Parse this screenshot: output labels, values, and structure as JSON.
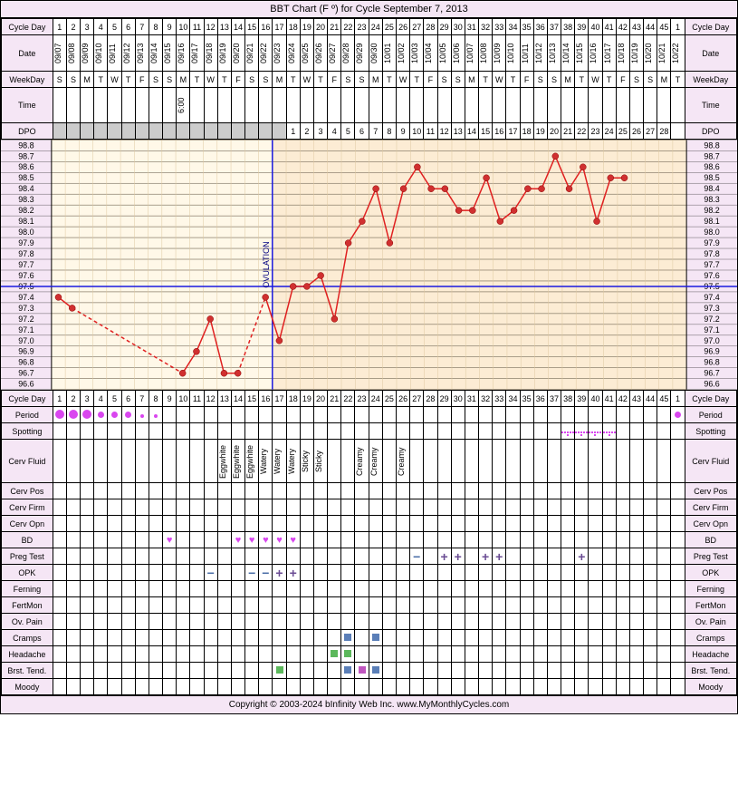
{
  "title": "BBT Chart (F º) for Cycle September 7, 2013",
  "footer": "Copyright © 2003-2024 bInfinity Web Inc.    www.MyMonthlyCycles.com",
  "labels": {
    "cycleDay": "Cycle Day",
    "date": "Date",
    "weekday": "WeekDay",
    "time": "Time",
    "dpo": "DPO",
    "period": "Period",
    "spotting": "Spotting",
    "cervFluid": "Cerv Fluid",
    "cervPos": "Cerv Pos",
    "cervFirm": "Cerv Firm",
    "cervOpn": "Cerv Opn",
    "bd": "BD",
    "pregTest": "Preg Test",
    "opk": "OPK",
    "ferning": "Ferning",
    "fertMon": "FertMon",
    "ovPain": "Ov. Pain",
    "cramps": "Cramps",
    "headache": "Headache",
    "brstTend": "Brst. Tend.",
    "moody": "Moody"
  },
  "days": 46,
  "cycleDays": [
    1,
    2,
    3,
    4,
    5,
    6,
    7,
    8,
    9,
    10,
    11,
    12,
    13,
    14,
    15,
    16,
    17,
    18,
    19,
    20,
    21,
    22,
    23,
    24,
    25,
    26,
    27,
    28,
    29,
    30,
    31,
    32,
    33,
    34,
    35,
    36,
    37,
    38,
    39,
    40,
    41,
    42,
    43,
    44,
    45,
    1
  ],
  "dates": [
    "09/07",
    "09/08",
    "09/09",
    "09/10",
    "09/11",
    "09/12",
    "09/13",
    "09/14",
    "09/15",
    "09/16",
    "09/17",
    "09/18",
    "09/19",
    "09/20",
    "09/21",
    "09/22",
    "09/23",
    "09/24",
    "09/25",
    "09/26",
    "09/27",
    "09/28",
    "09/29",
    "09/30",
    "10/01",
    "10/02",
    "10/03",
    "10/04",
    "10/05",
    "10/06",
    "10/07",
    "10/08",
    "10/09",
    "10/10",
    "10/11",
    "10/12",
    "10/13",
    "10/14",
    "10/15",
    "10/16",
    "10/17",
    "10/18",
    "10/19",
    "10/20",
    "10/21",
    "10/22"
  ],
  "weekdays": [
    "S",
    "S",
    "M",
    "T",
    "W",
    "T",
    "F",
    "S",
    "S",
    "M",
    "T",
    "W",
    "T",
    "F",
    "S",
    "S",
    "M",
    "T",
    "W",
    "T",
    "F",
    "S",
    "S",
    "M",
    "T",
    "W",
    "T",
    "F",
    "S",
    "S",
    "M",
    "T",
    "W",
    "T",
    "F",
    "S",
    "S",
    "M",
    "T",
    "W",
    "T",
    "F",
    "S",
    "S",
    "M",
    "T"
  ],
  "times": {
    "10": "6:00"
  },
  "dpo": [
    null,
    null,
    null,
    null,
    null,
    null,
    null,
    null,
    null,
    null,
    null,
    null,
    null,
    null,
    null,
    null,
    null,
    1,
    2,
    3,
    4,
    5,
    6,
    7,
    8,
    9,
    10,
    11,
    12,
    13,
    14,
    15,
    16,
    17,
    18,
    19,
    20,
    21,
    22,
    23,
    24,
    25,
    26,
    27,
    28,
    null
  ],
  "tempScale": [
    98.8,
    98.7,
    98.6,
    98.5,
    98.4,
    98.3,
    98.2,
    98.1,
    98.0,
    97.9,
    97.8,
    97.7,
    97.6,
    97.5,
    97.4,
    97.3,
    97.2,
    97.1,
    97.0,
    96.9,
    96.8,
    96.7,
    96.6
  ],
  "ovulationDay": 17,
  "coverline": 97.5,
  "temps": [
    {
      "d": 1,
      "t": 97.4,
      "dashed": false
    },
    {
      "d": 2,
      "t": 97.3,
      "dashed": false
    },
    {
      "d": 10,
      "t": 96.7,
      "dashed": true
    },
    {
      "d": 11,
      "t": 96.9,
      "dashed": false
    },
    {
      "d": 12,
      "t": 97.2,
      "dashed": false
    },
    {
      "d": 13,
      "t": 96.7,
      "dashed": false
    },
    {
      "d": 14,
      "t": 96.7,
      "dashed": false
    },
    {
      "d": 16,
      "t": 97.4,
      "dashed": true
    },
    {
      "d": 17,
      "t": 97.0,
      "dashed": false
    },
    {
      "d": 18,
      "t": 97.5,
      "dashed": false
    },
    {
      "d": 19,
      "t": 97.5,
      "dashed": false
    },
    {
      "d": 20,
      "t": 97.6,
      "dashed": false
    },
    {
      "d": 21,
      "t": 97.2,
      "dashed": false
    },
    {
      "d": 22,
      "t": 97.9,
      "dashed": false
    },
    {
      "d": 23,
      "t": 98.1,
      "dashed": false
    },
    {
      "d": 24,
      "t": 98.4,
      "dashed": false
    },
    {
      "d": 25,
      "t": 97.9,
      "dashed": false
    },
    {
      "d": 26,
      "t": 98.4,
      "dashed": false
    },
    {
      "d": 27,
      "t": 98.6,
      "dashed": false
    },
    {
      "d": 28,
      "t": 98.4,
      "dashed": false
    },
    {
      "d": 29,
      "t": 98.4,
      "dashed": false
    },
    {
      "d": 30,
      "t": 98.2,
      "dashed": false
    },
    {
      "d": 31,
      "t": 98.2,
      "dashed": false
    },
    {
      "d": 32,
      "t": 98.5,
      "dashed": false
    },
    {
      "d": 33,
      "t": 98.1,
      "dashed": false
    },
    {
      "d": 34,
      "t": 98.2,
      "dashed": false
    },
    {
      "d": 35,
      "t": 98.4,
      "dashed": false
    },
    {
      "d": 36,
      "t": 98.4,
      "dashed": false
    },
    {
      "d": 37,
      "t": 98.7,
      "dashed": false
    },
    {
      "d": 38,
      "t": 98.4,
      "dashed": false
    },
    {
      "d": 39,
      "t": 98.6,
      "dashed": false
    },
    {
      "d": 40,
      "t": 98.1,
      "dashed": false
    },
    {
      "d": 41,
      "t": 98.5,
      "dashed": false
    },
    {
      "d": 42,
      "t": 98.5,
      "dashed": false
    }
  ],
  "period": {
    "1": "l",
    "2": "l",
    "3": "l",
    "4": "m",
    "5": "m",
    "6": "m",
    "7": "s",
    "8": "s",
    "46": "m"
  },
  "spotting": {
    "38": true,
    "39": true,
    "40": true,
    "41": true
  },
  "cervFluid": {
    "13": "Eggwhite",
    "14": "Eggwhite",
    "15": "Eggwhite",
    "16": "Watery",
    "17": "Watery",
    "18": "Watery",
    "19": "Sticky",
    "20": "Sticky",
    "23": "Creamy",
    "24": "Creamy",
    "26": "Creamy"
  },
  "bd": {
    "9": true,
    "14": true,
    "15": true,
    "16": true,
    "17": true,
    "18": true
  },
  "pregTest": {
    "27": "-",
    "29": "+",
    "30": "+",
    "32": "+",
    "33": "+",
    "39": "+"
  },
  "opk": {
    "12": "-",
    "15": "-",
    "16": "-",
    "17": "+",
    "18": "+"
  },
  "cramps": {
    "22": "blue",
    "24": "blue"
  },
  "headache": {
    "21": "green",
    "22": "green"
  },
  "brstTend": {
    "17": "green",
    "22": "blue",
    "23": "mag",
    "24": "blue"
  },
  "colors": {
    "chartBg": "#fcecd4",
    "preOvBg": "#fff8e8",
    "grid": "#dec8a0",
    "line": "#e02020",
    "point": "#d03030",
    "ovLine": "#1a1ae0",
    "coverline": "#1a1ae0",
    "ovulationText": "#000080"
  }
}
